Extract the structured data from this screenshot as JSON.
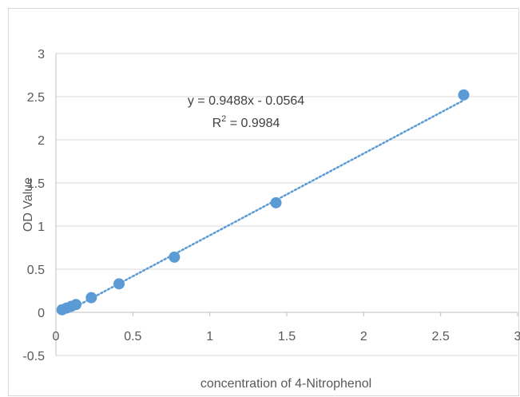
{
  "chart_data": {
    "type": "scatter",
    "title": "",
    "xlabel": "concentration of 4-Nitrophenol",
    "ylabel": "OD Value",
    "xlim": [
      0,
      3
    ],
    "ylim": [
      -0.5,
      3
    ],
    "x_ticks": [
      "0",
      "0.5",
      "1",
      "1.5",
      "2",
      "2.5",
      "3"
    ],
    "y_ticks": [
      "-0.5",
      "0",
      "0.5",
      "1",
      "1.5",
      "2",
      "2.5",
      "3"
    ],
    "x_tick_values": [
      0,
      0.5,
      1,
      1.5,
      2,
      2.5,
      3
    ],
    "y_tick_values": [
      -0.5,
      0,
      0.5,
      1,
      1.5,
      2,
      2.5,
      3
    ],
    "grid": "horizontal",
    "legend": "none",
    "marker_color": "#5b9bd5",
    "series": [
      {
        "x": [
          0.04,
          0.07,
          0.1,
          0.13,
          0.23,
          0.41,
          0.77,
          1.43,
          2.65
        ],
        "y": [
          0.03,
          0.05,
          0.07,
          0.09,
          0.17,
          0.33,
          0.64,
          1.27,
          2.52
        ]
      }
    ],
    "trendline": {
      "type": "linear",
      "slope": 0.9488,
      "intercept": -0.0564,
      "x_range": [
        0.04,
        2.65
      ],
      "style": "dotted",
      "color": "#5b9bd5"
    },
    "annotations": {
      "equation": "y = 0.9488x - 0.0564",
      "r_squared_prefix": "R",
      "r_squared_sup": "2",
      "r_squared_suffix": " = 0.9984"
    }
  }
}
